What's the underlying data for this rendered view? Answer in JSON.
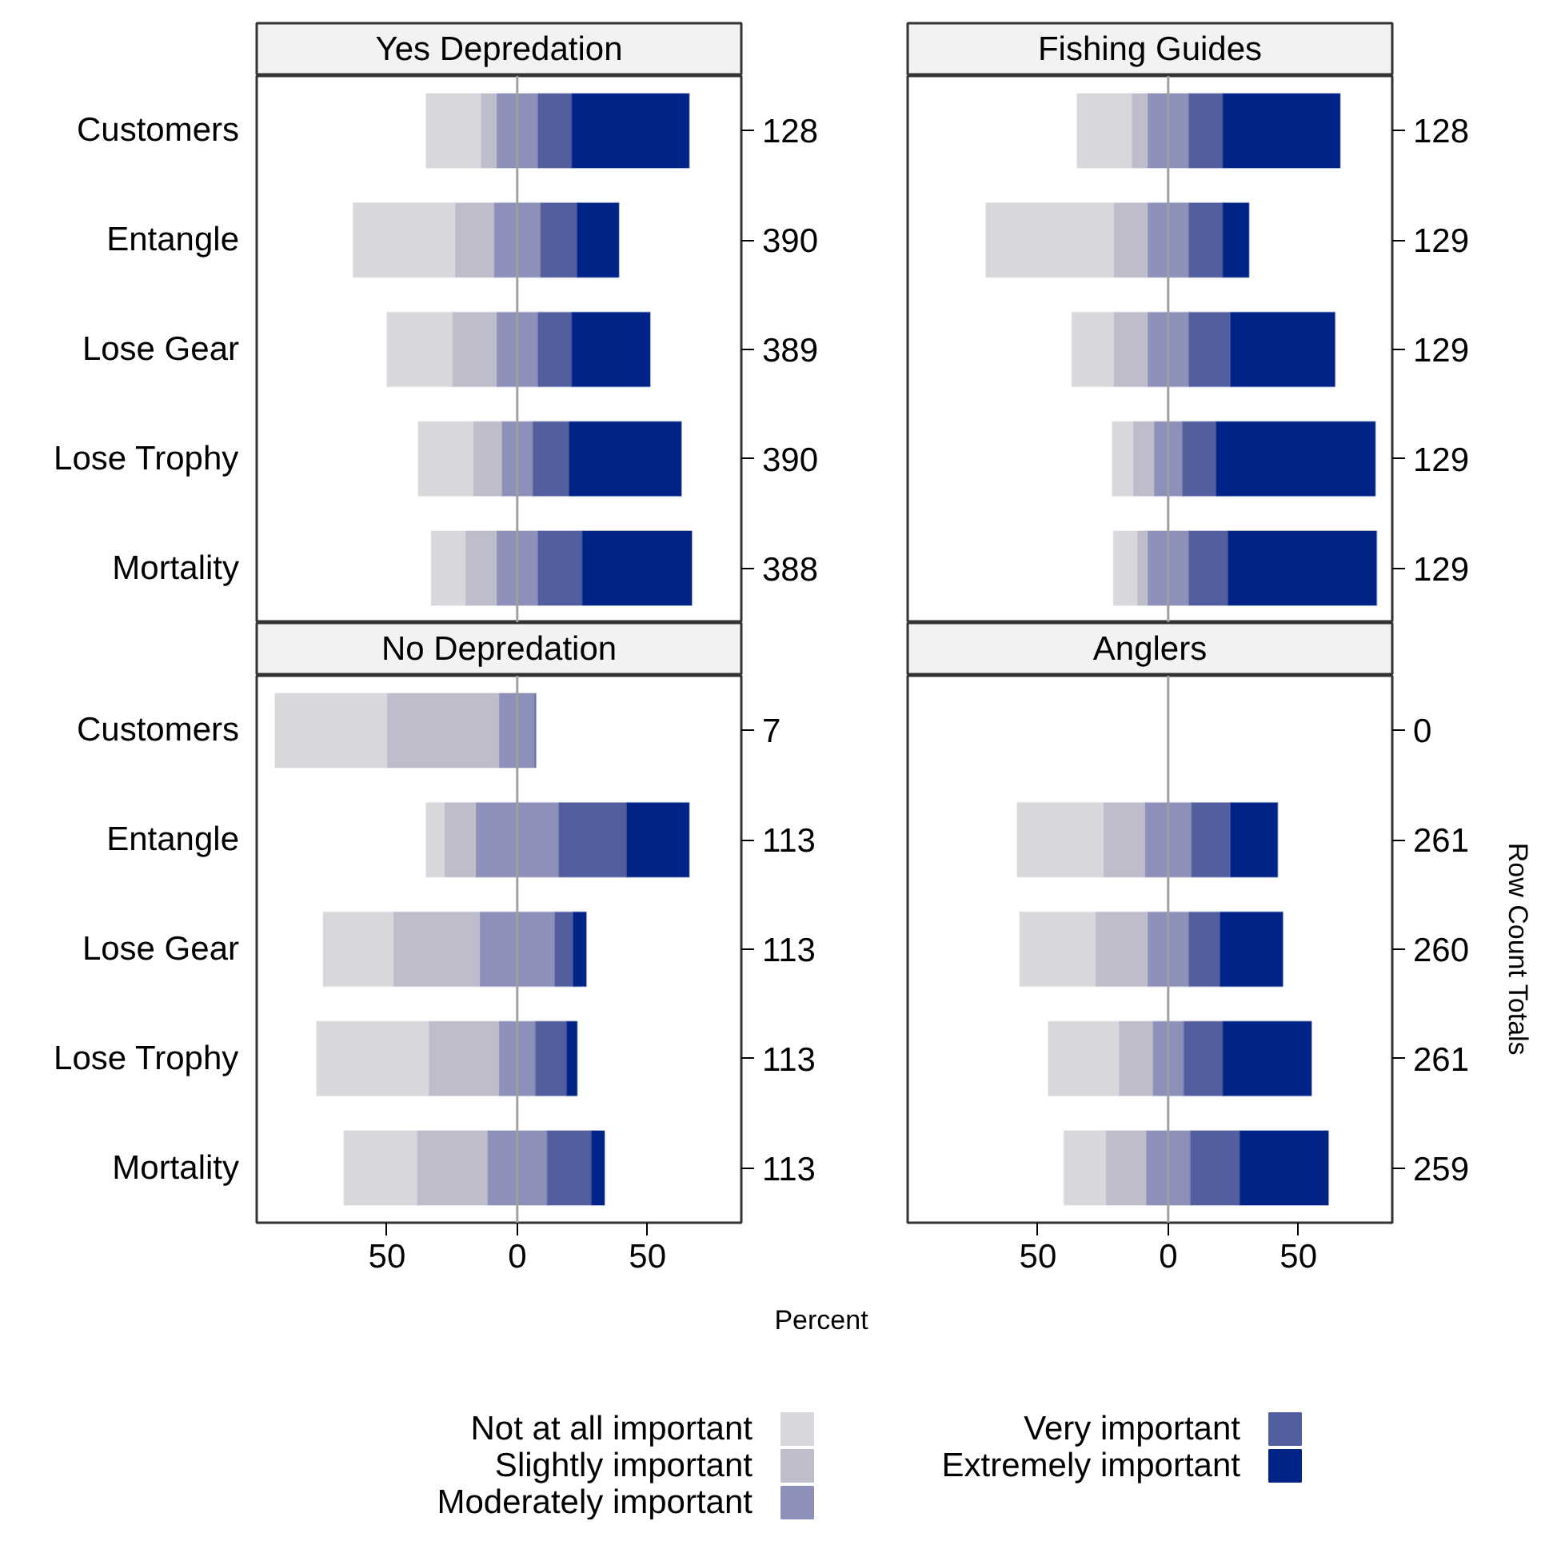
{
  "chart_data": [
    {
      "type": "bar",
      "title": "Yes Depredation",
      "orientation": "horizontal",
      "stacked": true,
      "categories": [
        "Customers",
        "Entangle",
        "Lose Gear",
        "Lose Trophy",
        "Mortality"
      ],
      "series": [
        {
          "color": "#8d90b8",
          "values": [
            -8,
            -9,
            -8,
            -6,
            -8
          ]
        },
        {
          "name": "Slightly important",
          "color": "#bdbdcb",
          "values": [
            -6,
            -15,
            -17,
            -11,
            -12
          ]
        },
        {
          "name": "Not at all important",
          "color": "#d8d8dc",
          "values": [
            -21,
            -39,
            -25,
            -21,
            -13
          ]
        },
        {
          "name": "Moderately important",
          "color": "#8d90b8",
          "values": [
            8,
            9,
            8,
            6,
            8
          ]
        },
        {
          "name": "Very important",
          "color": "#525e9d",
          "values": [
            13,
            14,
            13,
            14,
            17
          ]
        },
        {
          "name": "Extremely important",
          "color": "#002387",
          "values": [
            45,
            16,
            30,
            43,
            42
          ]
        }
      ],
      "annotations": [
        "128",
        "390",
        "389",
        "390",
        "388"
      ],
      "xlim": [
        -100,
        86
      ],
      "ref_lines": [
        {
          "axis": "x",
          "value": 0,
          "color": "#a0a0a0"
        }
      ],
      "tick_labels": "y",
      "grid": false,
      "legend": "bottom"
    },
    {
      "type": "bar",
      "title": "Fishing Guides",
      "orientation": "horizontal",
      "stacked": true,
      "categories": [
        null,
        null,
        null,
        null,
        null
      ],
      "series": [
        {
          "color": "#8d90b8",
          "values": [
            -8,
            -8,
            -8,
            -5.5,
            -8
          ]
        },
        {
          "color": "#bdbdcb",
          "values": [
            -6,
            -13,
            -13,
            -8,
            -4
          ]
        },
        {
          "color": "#d8d8dc",
          "values": [
            -21,
            -49,
            -16,
            -8,
            -9
          ]
        },
        {
          "color": "#8d90b8",
          "values": [
            8,
            8,
            8,
            5.5,
            8
          ]
        },
        {
          "color": "#525e9d",
          "values": [
            13,
            13,
            16,
            13,
            15
          ]
        },
        {
          "color": "#002387",
          "values": [
            45,
            10,
            40,
            61,
            57
          ]
        }
      ],
      "annotations": [
        "128",
        "129",
        "129",
        "129",
        "129"
      ],
      "xlim": [
        -100,
        86
      ],
      "ref_lines": [
        {
          "axis": "x",
          "value": 0,
          "color": "#a0a0a0"
        }
      ],
      "tick_labels": false,
      "grid": false
    },
    {
      "type": "bar",
      "title": "No Depredation",
      "orientation": "horizontal",
      "stacked": true,
      "xlabel": "Percent",
      "categories": [
        "Customers",
        "Entangle",
        "Lose Gear",
        "Lose Trophy",
        "Mortality"
      ],
      "series": [
        {
          "color": "#8d90b8",
          "values": [
            -7,
            -16,
            -14.5,
            -7,
            -11.5
          ]
        },
        {
          "color": "#bdbdcb",
          "values": [
            -43,
            -12,
            -33,
            -27,
            -27
          ]
        },
        {
          "color": "#d8d8dc",
          "values": [
            -43,
            -7,
            -27,
            -43,
            -28
          ]
        },
        {
          "color": "#8d90b8",
          "values": [
            7,
            16,
            14.5,
            7,
            11.5
          ]
        },
        {
          "color": "#525e9d",
          "values": [
            0,
            26,
            7,
            12,
            17
          ]
        },
        {
          "color": "#002387",
          "values": [
            0,
            24,
            5,
            4,
            5
          ]
        }
      ],
      "annotations": [
        "7",
        "113",
        "113",
        "113",
        "113"
      ],
      "xlim": [
        -100,
        86
      ],
      "xticks": [
        {
          "value": -50,
          "label": "50"
        },
        0,
        50
      ],
      "ref_lines": [
        {
          "axis": "x",
          "value": 0,
          "color": "#a0a0a0"
        }
      ],
      "grid": false
    },
    {
      "type": "bar",
      "title": "Anglers",
      "orientation": "horizontal",
      "stacked": true,
      "y2label": "Row Count Totals",
      "categories": [
        null,
        null,
        null,
        null,
        null
      ],
      "series": [
        {
          "color": "#8d90b8",
          "values": [
            null,
            -9,
            -8,
            -6,
            -8.5
          ]
        },
        {
          "color": "#bdbdcb",
          "values": [
            null,
            -16,
            -20,
            -13,
            -15.5
          ]
        },
        {
          "color": "#d8d8dc",
          "values": [
            null,
            -33,
            -29,
            -27,
            -16
          ]
        },
        {
          "color": "#8d90b8",
          "values": [
            null,
            9,
            8,
            6,
            8.5
          ]
        },
        {
          "color": "#525e9d",
          "values": [
            null,
            15,
            12,
            15,
            19
          ]
        },
        {
          "color": "#002387",
          "values": [
            null,
            18,
            24,
            34,
            34
          ]
        }
      ],
      "annotations": [
        "0",
        "261",
        "260",
        "261",
        "259"
      ],
      "xlim": [
        -100,
        86
      ],
      "xticks": [
        {
          "value": -50,
          "label": "50"
        },
        0,
        50
      ],
      "ref_lines": [
        {
          "axis": "x",
          "value": 0,
          "color": "#a0a0a0"
        }
      ],
      "tick_labels": "x",
      "grid": false
    }
  ]
}
